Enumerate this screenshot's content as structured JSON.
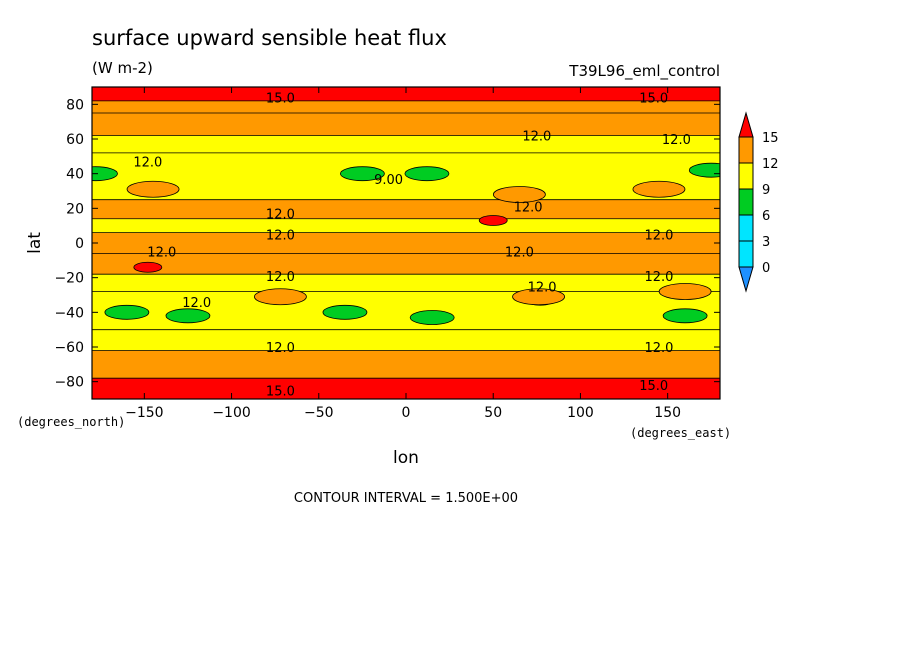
{
  "title": "surface upward sensible heat flux",
  "units": "(W m-2)",
  "run_name": "T39L96_eml_control",
  "contour_interval": "CONTOUR INTERVAL = 1.500E+00",
  "chart_data": {
    "type": "heatmap",
    "xlabel": "lon",
    "ylabel": "lat",
    "x_units": "(degrees_east)",
    "y_units": "(degrees_north)",
    "xlim": [
      -180,
      180
    ],
    "ylim": [
      -90,
      90
    ],
    "x_ticks": [
      -150,
      -100,
      -50,
      0,
      50,
      100,
      150
    ],
    "y_ticks": [
      80,
      60,
      40,
      20,
      0,
      -20,
      -40,
      -60,
      -80
    ],
    "colorbar": {
      "levels": [
        0,
        3,
        6,
        9,
        12,
        15
      ],
      "colors": [
        "#1e90ff",
        "#00e5ff",
        "#00cc22",
        "#ffff00",
        "#ff9900",
        "#ff0000"
      ],
      "extend": "both"
    },
    "lat_band_values": [
      {
        "lat_from": 82,
        "lat_to": 90,
        "value": 15.5
      },
      {
        "lat_from": 75,
        "lat_to": 82,
        "value": 13.5
      },
      {
        "lat_from": 62,
        "lat_to": 75,
        "value": 12.8
      },
      {
        "lat_from": 52,
        "lat_to": 62,
        "value": 10.5
      },
      {
        "lat_from": 25,
        "lat_to": 52,
        "value": 10.8
      },
      {
        "lat_from": 14,
        "lat_to": 25,
        "value": 12.3
      },
      {
        "lat_from": 6,
        "lat_to": 14,
        "value": 11.5
      },
      {
        "lat_from": -6,
        "lat_to": 6,
        "value": 12.4
      },
      {
        "lat_from": -18,
        "lat_to": -6,
        "value": 13.0
      },
      {
        "lat_from": -28,
        "lat_to": -18,
        "value": 10.8
      },
      {
        "lat_from": -50,
        "lat_to": -28,
        "value": 10.5
      },
      {
        "lat_from": -62,
        "lat_to": -50,
        "value": 10.8
      },
      {
        "lat_from": -78,
        "lat_to": -62,
        "value": 13.5
      },
      {
        "lat_from": -90,
        "lat_to": -78,
        "value": 15.5
      }
    ],
    "features": [
      {
        "lon": -25,
        "lat": 40,
        "value": 8.0
      },
      {
        "lon": 12,
        "lat": 40,
        "value": 8.0
      },
      {
        "lon": -178,
        "lat": 40,
        "value": 8.0
      },
      {
        "lon": 175,
        "lat": 42,
        "value": 8.0
      },
      {
        "lon": -160,
        "lat": -40,
        "value": 8.0
      },
      {
        "lon": -125,
        "lat": -42,
        "value": 8.0
      },
      {
        "lon": -35,
        "lat": -40,
        "value": 8.0
      },
      {
        "lon": 15,
        "lat": -43,
        "value": 8.0
      },
      {
        "lon": 160,
        "lat": -42,
        "value": 8.0
      },
      {
        "lon": -72,
        "lat": -31,
        "value": 15.5
      },
      {
        "lon": 77,
        "lat": -33,
        "value": 15.5
      },
      {
        "lon": 50,
        "lat": 13,
        "value": 15.5
      },
      {
        "lon": -148,
        "lat": -14,
        "value": 15.5
      },
      {
        "lon": -145,
        "lat": 31,
        "value": 13.0
      },
      {
        "lon": 65,
        "lat": 28,
        "value": 13.0
      },
      {
        "lon": 145,
        "lat": 31,
        "value": 13.0
      },
      {
        "lon": -72,
        "lat": -31,
        "value": 13.5
      },
      {
        "lon": 76,
        "lat": -31,
        "value": 13.5
      },
      {
        "lon": 160,
        "lat": -28,
        "value": 13.0
      }
    ],
    "contour_labels": [
      {
        "lon": -72,
        "lat": 84,
        "text": "15.0"
      },
      {
        "lon": 142,
        "lat": 84,
        "text": "15.0"
      },
      {
        "lon": 75,
        "lat": 62,
        "text": "12.0"
      },
      {
        "lon": 155,
        "lat": 60,
        "text": "12.0"
      },
      {
        "lon": -148,
        "lat": 47,
        "text": "12.0"
      },
      {
        "lon": -10,
        "lat": 37,
        "text": "9.00"
      },
      {
        "lon": -72,
        "lat": 17,
        "text": "12.0"
      },
      {
        "lon": 70,
        "lat": 21,
        "text": "12.0"
      },
      {
        "lon": -72,
        "lat": 5,
        "text": "12.0"
      },
      {
        "lon": 145,
        "lat": 5,
        "text": "12.0"
      },
      {
        "lon": -140,
        "lat": -5,
        "text": "12.0"
      },
      {
        "lon": 65,
        "lat": -5,
        "text": "12.0"
      },
      {
        "lon": -72,
        "lat": -19,
        "text": "12.0"
      },
      {
        "lon": 145,
        "lat": -19,
        "text": "12.0"
      },
      {
        "lon": -120,
        "lat": -34,
        "text": "12.0"
      },
      {
        "lon": 78,
        "lat": -25,
        "text": "12.0"
      },
      {
        "lon": -72,
        "lat": -60,
        "text": "12.0"
      },
      {
        "lon": 145,
        "lat": -60,
        "text": "12.0"
      },
      {
        "lon": -72,
        "lat": -85,
        "text": "15.0"
      },
      {
        "lon": 142,
        "lat": -82,
        "text": "15.0"
      }
    ]
  }
}
